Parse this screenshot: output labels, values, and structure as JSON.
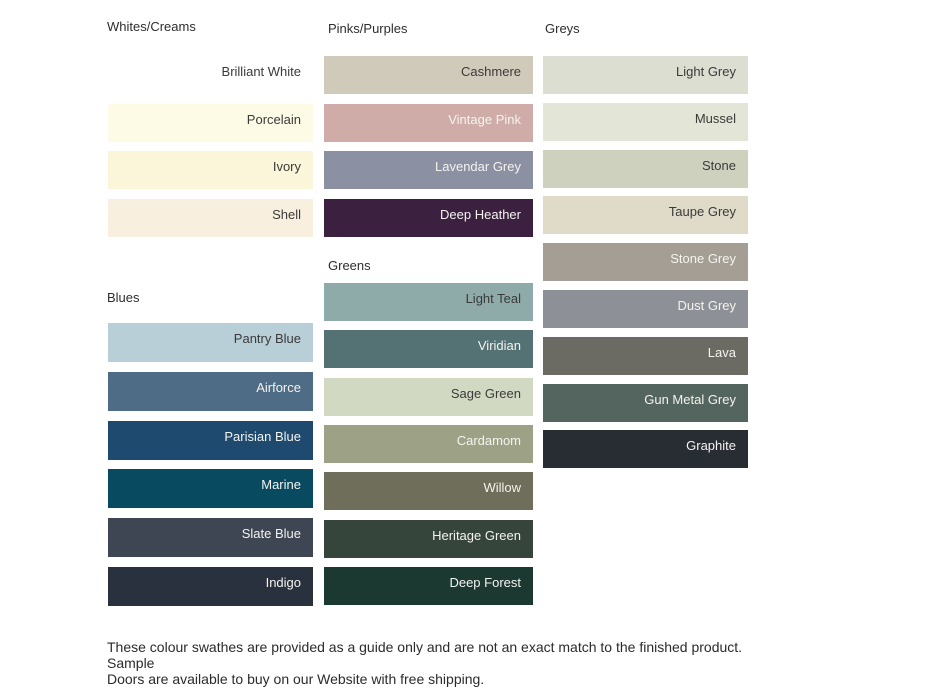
{
  "page": {
    "footer": {
      "lines": [
        "These colour swathes are provided as a guide only and are not an exact match to the finished product.  Sample",
        "Doors are available to buy on our Website with free shipping."
      ]
    }
  },
  "palette": {
    "label_color_dark": "#3a3a3a",
    "label_color_light": "#f5f3ef",
    "sections": [
      {
        "id": "whites",
        "title": "Whites/Creams",
        "swatches": [
          {
            "name": "Brilliant White",
            "color": "#ffffff",
            "text": "dark"
          },
          {
            "name": "Porcelain",
            "color": "#fdfbe5",
            "text": "dark"
          },
          {
            "name": "Ivory",
            "color": "#fbf6d9",
            "text": "dark"
          },
          {
            "name": "Shell",
            "color": "#f8efdf",
            "text": "dark"
          }
        ]
      },
      {
        "id": "pinks",
        "title": "Pinks/Purples",
        "swatches": [
          {
            "name": "Cashmere",
            "color": "#d0caba",
            "text": "dark"
          },
          {
            "name": "Vintage Pink",
            "color": "#cfaca7",
            "text": "light"
          },
          {
            "name": "Lavendar Grey",
            "color": "#8b90a3",
            "text": "light"
          },
          {
            "name": "Deep Heather",
            "color": "#3b2040",
            "text": "light"
          }
        ]
      },
      {
        "id": "greys",
        "title": "Greys",
        "swatches": [
          {
            "name": "Light Grey",
            "color": "#dcded2",
            "text": "dark"
          },
          {
            "name": "Mussel",
            "color": "#e3e5d6",
            "text": "dark"
          },
          {
            "name": "Stone",
            "color": "#cfd1bf",
            "text": "dark"
          },
          {
            "name": "Taupe Grey",
            "color": "#e0dac8",
            "text": "dark"
          },
          {
            "name": "Stone Grey",
            "color": "#a49e94",
            "text": "light"
          },
          {
            "name": "Dust Grey",
            "color": "#8d9096",
            "text": "light"
          },
          {
            "name": "Lava",
            "color": "#6b6b63",
            "text": "light"
          },
          {
            "name": "Gun Metal Grey",
            "color": "#54645f",
            "text": "light"
          },
          {
            "name": "Graphite",
            "color": "#272d33",
            "text": "light"
          }
        ]
      },
      {
        "id": "blues",
        "title": "Blues",
        "swatches": [
          {
            "name": "Pantry Blue",
            "color": "#b8cfd8",
            "text": "dark"
          },
          {
            "name": "Airforce",
            "color": "#4e6c85",
            "text": "light"
          },
          {
            "name": "Parisian Blue",
            "color": "#1d4a6e",
            "text": "light"
          },
          {
            "name": "Marine",
            "color": "#084a60",
            "text": "light"
          },
          {
            "name": "Slate Blue",
            "color": "#3e4553",
            "text": "light"
          },
          {
            "name": "Indigo",
            "color": "#2a313e",
            "text": "light"
          }
        ]
      },
      {
        "id": "greens",
        "title": "Greens",
        "swatches": [
          {
            "name": "Light Teal",
            "color": "#8eabaa",
            "text": "dark"
          },
          {
            "name": "Viridian",
            "color": "#547274",
            "text": "light"
          },
          {
            "name": "Sage Green",
            "color": "#d2d9c3",
            "text": "dark"
          },
          {
            "name": "Cardamom",
            "color": "#9da287",
            "text": "light"
          },
          {
            "name": "Willow",
            "color": "#6e6e5b",
            "text": "light"
          },
          {
            "name": "Heritage Green",
            "color": "#35453c",
            "text": "light"
          },
          {
            "name": "Deep Forest",
            "color": "#1c3931",
            "text": "light"
          }
        ]
      }
    ]
  }
}
